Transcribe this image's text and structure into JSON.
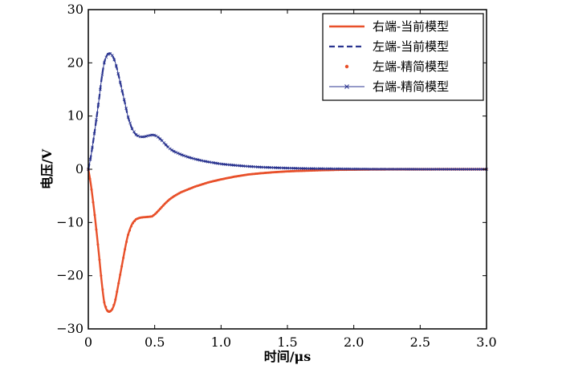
{
  "chart_data": {
    "type": "line",
    "title": "",
    "xlabel": "时间/μs",
    "ylabel": "电压/V",
    "xlim": [
      0,
      3.0
    ],
    "ylim": [
      -30,
      30
    ],
    "xticks": [
      0,
      0.5,
      1.0,
      1.5,
      2.0,
      2.5,
      3.0
    ],
    "xtick_labels": [
      "0",
      "0.5",
      "1.0",
      "1.5",
      "2.0",
      "2.5",
      "3.0"
    ],
    "yticks": [
      -30,
      -20,
      -10,
      0,
      10,
      20,
      30
    ],
    "ytick_labels": [
      "−30",
      "−20",
      "−10",
      "0",
      "10",
      "20",
      "30"
    ],
    "grid": false,
    "legend_position": "top-right",
    "colors": {
      "red": "#e8502a",
      "blue": "#2b3590"
    },
    "x": [
      0,
      0.02,
      0.05,
      0.08,
      0.1,
      0.12,
      0.14,
      0.16,
      0.18,
      0.2,
      0.22,
      0.25,
      0.28,
      0.3,
      0.33,
      0.36,
      0.39,
      0.42,
      0.45,
      0.48,
      0.5,
      0.52,
      0.55,
      0.58,
      0.61,
      0.65,
      0.7,
      0.75,
      0.8,
      0.85,
      0.9,
      1.0,
      1.1,
      1.2,
      1.3,
      1.4,
      1.5,
      1.6,
      1.7,
      1.8,
      1.9,
      2.0,
      2.1,
      2.2,
      2.4,
      2.6,
      2.8,
      3.0
    ],
    "series": [
      {
        "name": "右端-当前模型",
        "style": "solid",
        "values": [
          0,
          -3,
          -9,
          -16,
          -21,
          -25,
          -26.5,
          -26.8,
          -26.3,
          -25,
          -22.5,
          -18.5,
          -14.5,
          -12.3,
          -10.3,
          -9.4,
          -9.1,
          -9.0,
          -8.95,
          -8.85,
          -8.5,
          -8.0,
          -7.2,
          -6.4,
          -5.7,
          -5.0,
          -4.3,
          -3.8,
          -3.3,
          -2.9,
          -2.5,
          -1.9,
          -1.4,
          -1.0,
          -0.75,
          -0.55,
          -0.4,
          -0.3,
          -0.22,
          -0.15,
          -0.1,
          -0.07,
          -0.05,
          -0.03,
          -0.02,
          -0.01,
          -0.005,
          0
        ]
      },
      {
        "name": "左端-当前模型",
        "style": "dashed",
        "values": [
          0,
          2.5,
          7.5,
          13,
          17,
          20,
          21.4,
          21.8,
          21.4,
          20.3,
          18.5,
          15.3,
          12,
          9.8,
          7.6,
          6.5,
          6.1,
          6.1,
          6.3,
          6.45,
          6.4,
          6.15,
          5.5,
          4.7,
          3.95,
          3.3,
          2.75,
          2.3,
          1.95,
          1.65,
          1.4,
          1.0,
          0.75,
          0.55,
          0.4,
          0.3,
          0.22,
          0.16,
          0.12,
          0.09,
          0.07,
          0.05,
          0.03,
          0.02,
          0.01,
          0.005,
          0,
          0
        ]
      },
      {
        "name": "左端-精简模型",
        "style": "dots",
        "values": [
          0,
          -3,
          -9,
          -16,
          -21,
          -25,
          -26.5,
          -26.8,
          -26.3,
          -25,
          -22.5,
          -18.5,
          -14.5,
          -12.3,
          -10.3,
          -9.4,
          -9.1,
          -9.0,
          -8.95,
          -8.85,
          -8.5,
          -8.0,
          -7.2,
          -6.4,
          -5.7,
          -5.0,
          -4.3,
          -3.8,
          -3.3,
          -2.9,
          -2.5,
          -1.9,
          -1.4,
          -1.0,
          -0.75,
          -0.55,
          -0.4,
          -0.3,
          -0.22,
          -0.15,
          -0.1,
          -0.07,
          -0.05,
          -0.03,
          -0.02,
          -0.01,
          -0.005,
          0
        ]
      },
      {
        "name": "右端-精简模型",
        "style": "line-x-markers",
        "values": [
          0,
          2.5,
          7.5,
          13,
          17,
          20,
          21.4,
          21.8,
          21.4,
          20.3,
          18.5,
          15.3,
          12,
          9.8,
          7.6,
          6.5,
          6.1,
          6.1,
          6.3,
          6.45,
          6.4,
          6.15,
          5.5,
          4.7,
          3.95,
          3.3,
          2.75,
          2.3,
          1.95,
          1.65,
          1.4,
          1.0,
          0.75,
          0.55,
          0.4,
          0.3,
          0.22,
          0.16,
          0.12,
          0.09,
          0.07,
          0.05,
          0.03,
          0.02,
          0.01,
          0.005,
          0,
          0
        ]
      }
    ]
  }
}
